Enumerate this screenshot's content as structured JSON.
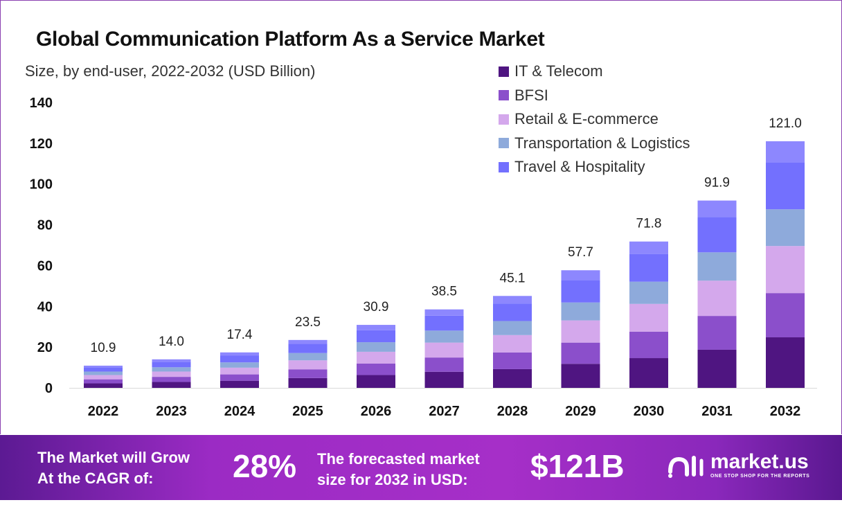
{
  "chart_data": {
    "type": "bar",
    "stacked": true,
    "title": "Global Communication Platform As a Service Market",
    "subtitle": "Size, by end-user, 2022-2032 (USD Billion)",
    "categories": [
      "2022",
      "2023",
      "2024",
      "2025",
      "2026",
      "2027",
      "2028",
      "2029",
      "2030",
      "2031",
      "2032"
    ],
    "totals": [
      "10.9",
      "14.0",
      "17.4",
      "23.5",
      "30.9",
      "38.5",
      "45.1",
      "57.7",
      "71.8",
      "91.9",
      "121.0"
    ],
    "series": [
      {
        "name": "IT & Telecom",
        "color": "#4f1581",
        "values": [
          2.2,
          2.9,
          3.5,
          4.8,
          6.3,
          7.9,
          9.2,
          11.8,
          14.6,
          18.7,
          24.8
        ]
      },
      {
        "name": "BFSI",
        "color": "#8b4fcb",
        "values": [
          2.0,
          2.5,
          3.1,
          4.3,
          5.6,
          7.0,
          8.2,
          10.4,
          13.0,
          16.6,
          21.7
        ]
      },
      {
        "name": "Retail & E-commerce",
        "color": "#d4a8ec",
        "values": [
          2.1,
          2.6,
          3.3,
          4.4,
          5.8,
          7.3,
          8.5,
          10.9,
          13.6,
          17.3,
          23.1
        ]
      },
      {
        "name": "Transportation & Logistics",
        "color": "#8eaadb",
        "values": [
          1.7,
          2.1,
          2.6,
          3.6,
          4.7,
          5.9,
          6.9,
          8.8,
          10.9,
          13.9,
          18.0
        ]
      },
      {
        "name": "Travel & Hospitality",
        "color": "#7370fe",
        "values": [
          2.1,
          2.7,
          3.3,
          4.5,
          5.9,
          7.3,
          8.6,
          11.0,
          13.6,
          17.3,
          23.1
        ]
      },
      {
        "color": "#8d87fe",
        "values": [
          0.8,
          1.2,
          1.6,
          1.9,
          2.6,
          3.1,
          3.7,
          4.8,
          6.1,
          8.1,
          10.3
        ]
      }
    ],
    "yticks": [
      "0",
      "20",
      "40",
      "60",
      "80",
      "100",
      "120",
      "140"
    ],
    "ylim": [
      0,
      140
    ],
    "grid": false,
    "legend": "top-right"
  },
  "footer": {
    "cagr_label_1": "The Market will Grow",
    "cagr_label_2": "At the CAGR of:",
    "cagr_value": "28%",
    "forecast_label_1": "The forecasted market",
    "forecast_label_2": "size for 2032 in USD:",
    "forecast_value": "$121B",
    "brand": "market.us",
    "brand_tagline": "ONE STOP SHOP FOR THE REPORTS"
  }
}
